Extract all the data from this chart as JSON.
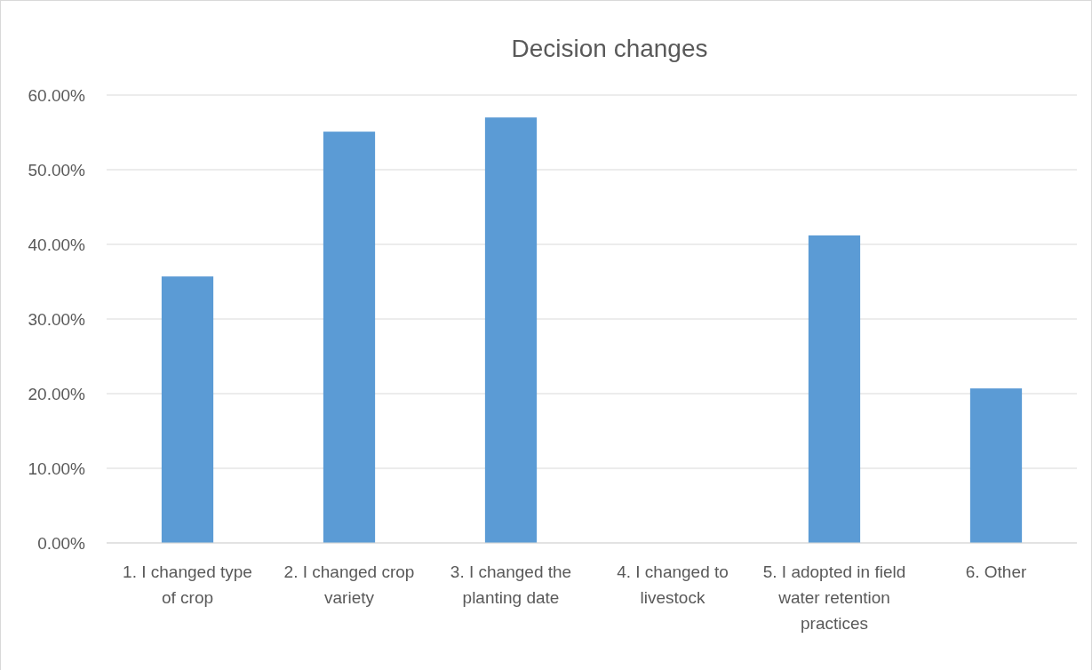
{
  "chart_data": {
    "type": "bar",
    "title": "Decision changes",
    "categories": [
      "1. I changed type of crop",
      "2. I changed crop variety",
      "3. I changed the planting date",
      "4. I changed to livestock",
      "5. I adopted in field water retention practices",
      "6. Other"
    ],
    "values": [
      35.7,
      55.1,
      57.0,
      0,
      41.2,
      20.7
    ],
    "color": "#5b9bd5",
    "ylim": [
      0,
      60
    ],
    "yticks": [
      {
        "value": 0,
        "label": "0.00%"
      },
      {
        "value": 10,
        "label": "10.00%"
      },
      {
        "value": 20,
        "label": "20.00%"
      },
      {
        "value": 30,
        "label": "30.00%"
      },
      {
        "value": 40,
        "label": "40.00%"
      },
      {
        "value": 50,
        "label": "50.00%"
      },
      {
        "value": 60,
        "label": "60.00%"
      }
    ],
    "grid": true
  }
}
